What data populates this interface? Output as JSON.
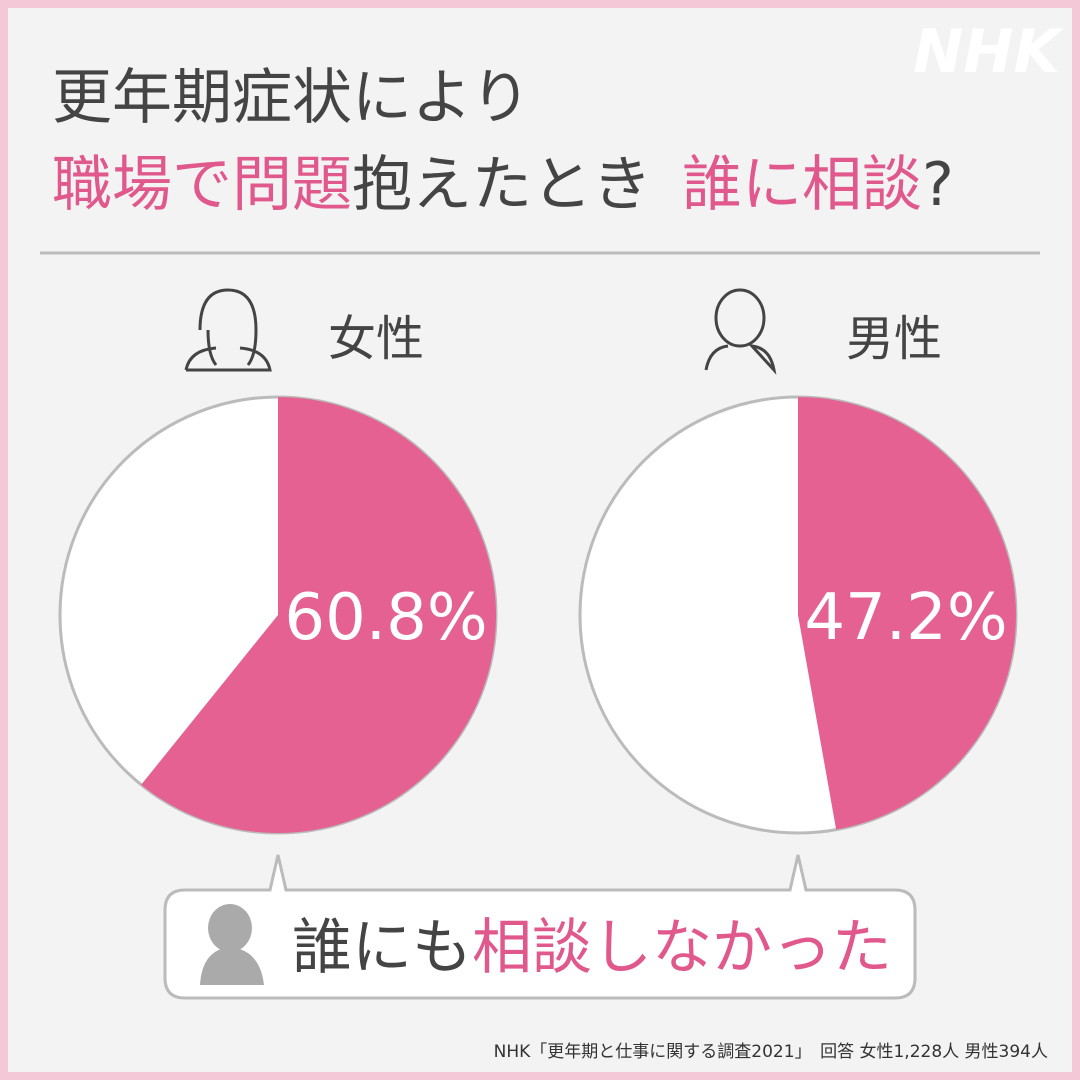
{
  "header": {
    "line1": "更年期症状により",
    "line2": [
      "職場で問題",
      "抱えたとき",
      "誰に相談",
      "?"
    ]
  },
  "logo": "NHK",
  "chart_data": [
    {
      "type": "pie",
      "title": "女性",
      "values": [
        60.8
      ],
      "value_labels": [
        "60.8%"
      ],
      "color": "#e46191"
    },
    {
      "type": "pie",
      "title": "男性",
      "values": [
        47.2
      ],
      "value_labels": [
        "47.2%"
      ],
      "color": "#e46191"
    }
  ],
  "callout": [
    "誰にも",
    "相談しなかった"
  ],
  "source": "NHK「更年期と仕事に関する調査2021」　回答 女性1,228人 男性394人"
}
